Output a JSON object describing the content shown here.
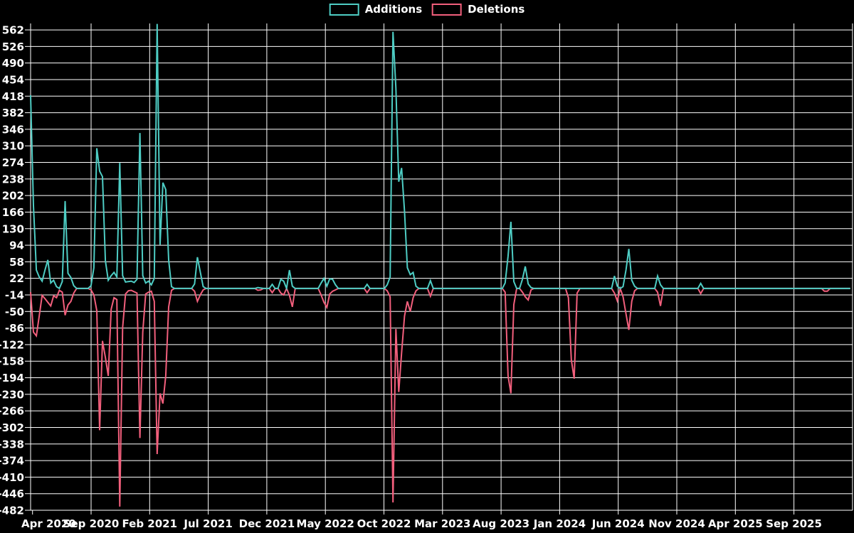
{
  "page": {
    "background": "#000000",
    "text_color": "#ffffff"
  },
  "chart_data": {
    "type": "line",
    "title": "",
    "xlabel": "",
    "ylabel": "",
    "grid": true,
    "grid_color": "#ffffff",
    "background": "#000000",
    "legend_position": "top-center",
    "legend": [
      {
        "label": "Additions",
        "color": "#4ECDC4"
      },
      {
        "label": "Deletions",
        "color": "#F25F7C"
      }
    ],
    "ylim": [
      -482,
      576
    ],
    "y_ticks": [
      562,
      526,
      490,
      454,
      418,
      382,
      346,
      310,
      274,
      238,
      202,
      166,
      130,
      94,
      58,
      22,
      -14,
      -50,
      -86,
      -122,
      -158,
      -194,
      -230,
      -266,
      -302,
      -338,
      -374,
      -410,
      -446,
      -482
    ],
    "x_ticks": [
      "Apr 2020",
      "Sep 2020",
      "Feb 2021",
      "Jul 2021",
      "Dec 2021",
      "May 2022",
      "Oct 2022",
      "Mar 2023",
      "Aug 2023",
      "Jan 2024",
      "Jun 2024",
      "Nov 2024",
      "Apr 2025",
      "Sep 2025"
    ],
    "x_tick_interval_months": 5,
    "x_unit": "week",
    "weeks_total": 286,
    "series": [
      {
        "name": "Additions",
        "color": "#4ECDC4",
        "baseline": 0,
        "sparse_weekly_points": [
          [
            0,
            420
          ],
          [
            1,
            180
          ],
          [
            2,
            40
          ],
          [
            3,
            25
          ],
          [
            4,
            16
          ],
          [
            5,
            40
          ],
          [
            6,
            62
          ],
          [
            7,
            12
          ],
          [
            8,
            18
          ],
          [
            9,
            4
          ],
          [
            11,
            15
          ],
          [
            12,
            190
          ],
          [
            13,
            33
          ],
          [
            14,
            24
          ],
          [
            15,
            6
          ],
          [
            21,
            6
          ],
          [
            22,
            45
          ],
          [
            23,
            305
          ],
          [
            24,
            255
          ],
          [
            25,
            243
          ],
          [
            26,
            60
          ],
          [
            27,
            18
          ],
          [
            28,
            28
          ],
          [
            29,
            35
          ],
          [
            30,
            25
          ],
          [
            31,
            273
          ],
          [
            32,
            28
          ],
          [
            33,
            14
          ],
          [
            34,
            15
          ],
          [
            35,
            16
          ],
          [
            36,
            13
          ],
          [
            37,
            20
          ],
          [
            38,
            338
          ],
          [
            39,
            28
          ],
          [
            40,
            12
          ],
          [
            41,
            16
          ],
          [
            42,
            8
          ],
          [
            43,
            22
          ],
          [
            44,
            575
          ],
          [
            45,
            95
          ],
          [
            46,
            230
          ],
          [
            47,
            215
          ],
          [
            48,
            62
          ],
          [
            49,
            4
          ],
          [
            57,
            10
          ],
          [
            58,
            68
          ],
          [
            59,
            36
          ],
          [
            60,
            4
          ],
          [
            79,
            2
          ],
          [
            80,
            1
          ],
          [
            84,
            9
          ],
          [
            87,
            20
          ],
          [
            88,
            16
          ],
          [
            90,
            40
          ],
          [
            91,
            5
          ],
          [
            101,
            12
          ],
          [
            102,
            22
          ],
          [
            103,
            5
          ],
          [
            104,
            21
          ],
          [
            105,
            20
          ],
          [
            106,
            8
          ],
          [
            117,
            9
          ],
          [
            124,
            8
          ],
          [
            125,
            25
          ],
          [
            126,
            558
          ],
          [
            127,
            435
          ],
          [
            128,
            232
          ],
          [
            129,
            262
          ],
          [
            130,
            168
          ],
          [
            131,
            45
          ],
          [
            132,
            30
          ],
          [
            133,
            35
          ],
          [
            134,
            5
          ],
          [
            139,
            17
          ],
          [
            165,
            12
          ],
          [
            166,
            70
          ],
          [
            167,
            145
          ],
          [
            168,
            15
          ],
          [
            171,
            20
          ],
          [
            172,
            48
          ],
          [
            173,
            10
          ],
          [
            174,
            2
          ],
          [
            203,
            27
          ],
          [
            204,
            5
          ],
          [
            206,
            4
          ],
          [
            207,
            40
          ],
          [
            208,
            86
          ],
          [
            209,
            18
          ],
          [
            210,
            5
          ],
          [
            218,
            27
          ],
          [
            219,
            8
          ],
          [
            233,
            11
          ]
        ]
      },
      {
        "name": "Deletions",
        "color": "#F25F7C",
        "baseline": 0,
        "sparse_weekly_points": [
          [
            0,
            -8
          ],
          [
            1,
            -95
          ],
          [
            2,
            -103
          ],
          [
            3,
            -60
          ],
          [
            4,
            -15
          ],
          [
            5,
            -22
          ],
          [
            6,
            -30
          ],
          [
            7,
            -38
          ],
          [
            8,
            -16
          ],
          [
            9,
            -20
          ],
          [
            10,
            -4
          ],
          [
            11,
            -8
          ],
          [
            12,
            -58
          ],
          [
            13,
            -36
          ],
          [
            14,
            -28
          ],
          [
            15,
            -10
          ],
          [
            21,
            -3
          ],
          [
            22,
            -14
          ],
          [
            23,
            -48
          ],
          [
            24,
            -308
          ],
          [
            25,
            -114
          ],
          [
            26,
            -150
          ],
          [
            27,
            -190
          ],
          [
            28,
            -45
          ],
          [
            29,
            -20
          ],
          [
            30,
            -24
          ],
          [
            31,
            -474
          ],
          [
            32,
            -85
          ],
          [
            33,
            -12
          ],
          [
            34,
            -5
          ],
          [
            35,
            -4
          ],
          [
            36,
            -7
          ],
          [
            37,
            -10
          ],
          [
            38,
            -325
          ],
          [
            39,
            -95
          ],
          [
            40,
            -12
          ],
          [
            41,
            -8
          ],
          [
            42,
            -6
          ],
          [
            43,
            -28
          ],
          [
            44,
            -360
          ],
          [
            45,
            -228
          ],
          [
            46,
            -250
          ],
          [
            47,
            -190
          ],
          [
            48,
            -40
          ],
          [
            49,
            -4
          ],
          [
            57,
            -6
          ],
          [
            58,
            -28
          ],
          [
            59,
            -14
          ],
          [
            60,
            -3
          ],
          [
            79,
            -4
          ],
          [
            80,
            -3
          ],
          [
            84,
            -9
          ],
          [
            87,
            -10
          ],
          [
            88,
            -14
          ],
          [
            90,
            -15
          ],
          [
            91,
            -40
          ],
          [
            101,
            -14
          ],
          [
            102,
            -30
          ],
          [
            103,
            -41
          ],
          [
            104,
            -12
          ],
          [
            105,
            -6
          ],
          [
            106,
            -3
          ],
          [
            117,
            -9
          ],
          [
            124,
            -5
          ],
          [
            125,
            -18
          ],
          [
            126,
            -465
          ],
          [
            127,
            -88
          ],
          [
            128,
            -225
          ],
          [
            129,
            -140
          ],
          [
            130,
            -60
          ],
          [
            131,
            -28
          ],
          [
            132,
            -50
          ],
          [
            133,
            -20
          ],
          [
            134,
            -5
          ],
          [
            139,
            -17
          ],
          [
            165,
            -8
          ],
          [
            166,
            -190
          ],
          [
            167,
            -228
          ],
          [
            168,
            -35
          ],
          [
            171,
            -8
          ],
          [
            172,
            -18
          ],
          [
            173,
            -25
          ],
          [
            174,
            -3
          ],
          [
            187,
            -20
          ],
          [
            188,
            -155
          ],
          [
            189,
            -196
          ],
          [
            190,
            -10
          ],
          [
            203,
            -10
          ],
          [
            204,
            -27
          ],
          [
            206,
            -18
          ],
          [
            207,
            -55
          ],
          [
            208,
            -90
          ],
          [
            209,
            -28
          ],
          [
            210,
            -5
          ],
          [
            218,
            -8
          ],
          [
            219,
            -38
          ],
          [
            233,
            -11
          ],
          [
            276,
            -6
          ],
          [
            277,
            -6
          ]
        ]
      }
    ]
  }
}
